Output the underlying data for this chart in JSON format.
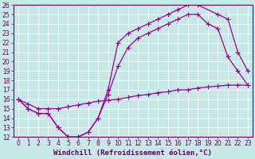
{
  "xlabel": "Windchill (Refroidissement éolien,°C)",
  "bg_color": "#c8e8e8",
  "line_color": "#990099",
  "xlim": [
    -0.5,
    23.5
  ],
  "ylim": [
    12,
    26
  ],
  "xticks": [
    0,
    1,
    2,
    3,
    4,
    5,
    6,
    7,
    8,
    9,
    10,
    11,
    12,
    13,
    14,
    15,
    16,
    17,
    18,
    19,
    20,
    21,
    22,
    23
  ],
  "yticks": [
    12,
    13,
    14,
    15,
    16,
    17,
    18,
    19,
    20,
    21,
    22,
    23,
    24,
    25,
    26
  ],
  "lines": [
    {
      "x": [
        0,
        1,
        2,
        3,
        4,
        5,
        6,
        7,
        8,
        9,
        10,
        11,
        12,
        13,
        14,
        15,
        16,
        17,
        18,
        20,
        21,
        22,
        23
      ],
      "y": [
        16,
        15,
        14.5,
        14.5,
        13,
        12,
        12,
        12.5,
        14,
        17,
        22,
        23,
        23.5,
        24,
        24.5,
        25,
        25.5,
        26,
        26,
        25,
        24.5,
        21,
        19
      ]
    },
    {
      "x": [
        0,
        1,
        2,
        3,
        4,
        5,
        6,
        7,
        8,
        9,
        10,
        11,
        12,
        13,
        14,
        15,
        16,
        17,
        18,
        19,
        20,
        21,
        22,
        23
      ],
      "y": [
        16,
        15,
        14.5,
        14.5,
        13,
        12,
        12,
        12.5,
        14,
        16.5,
        19.5,
        21.5,
        22.5,
        23,
        23.5,
        24,
        24.5,
        25,
        25,
        24,
        23.5,
        20.5,
        19,
        17.5
      ]
    },
    {
      "x": [
        0,
        1,
        2,
        3,
        4,
        5,
        6,
        7,
        8,
        9,
        10,
        11,
        12,
        13,
        14,
        15,
        16,
        17,
        18,
        19,
        20,
        21,
        22,
        23
      ],
      "y": [
        16,
        15.5,
        15,
        15,
        15,
        15.2,
        15.4,
        15.6,
        15.8,
        15.9,
        16,
        16.2,
        16.4,
        16.5,
        16.7,
        16.8,
        17,
        17,
        17.2,
        17.3,
        17.4,
        17.5,
        17.5,
        17.5
      ]
    }
  ],
  "marker": "+",
  "markersize": 4,
  "linewidth": 0.9,
  "tick_fontsize": 5.5,
  "label_fontsize": 6.5,
  "grid_color": "#ffffff",
  "grid_linewidth": 0.5,
  "axis_color": "#660066",
  "tick_color": "#660066",
  "label_color": "#660066"
}
